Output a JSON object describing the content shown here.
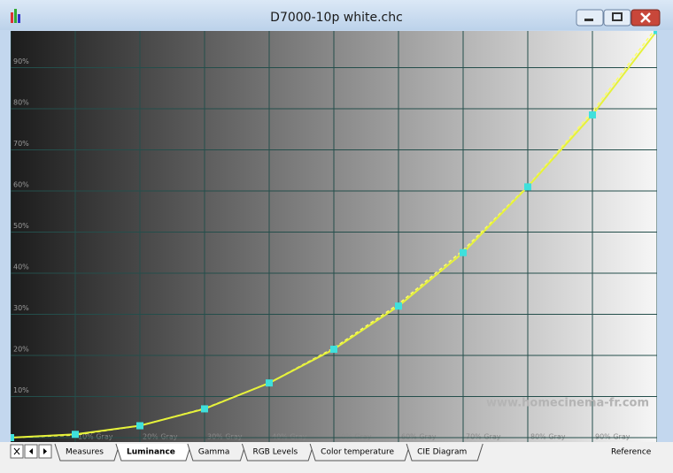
{
  "window": {
    "title": "D7000-10p white.chc"
  },
  "tabs": [
    "Measures",
    "Luminance",
    "Gamma",
    "RGB Levels",
    "Color temperature",
    "CIE Diagram"
  ],
  "watermark": "www.homecinema-fr.com",
  "chart_data": {
    "type": "line",
    "x": [
      0,
      10,
      20,
      30,
      40,
      50,
      60,
      70,
      80,
      90,
      100
    ],
    "series": [
      {
        "color": "#e6f23a",
        "marker_color": "#3fe0dc",
        "values": [
          0,
          0.8,
          2.9,
          7.0,
          13.3,
          21.5,
          32.0,
          45.0,
          61.0,
          78.5,
          99
        ]
      },
      {
        "name": "Reference",
        "color": "#ffff66",
        "dashed": true,
        "values": [
          0,
          0.63,
          2.9,
          7.1,
          13.3,
          21.8,
          32.5,
          45.6,
          61.2,
          79.3,
          100
        ]
      }
    ],
    "xlim": [
      0,
      100
    ],
    "xticks": [
      0,
      {
        "value": 10,
        "label": "10% Gray"
      },
      {
        "value": 20,
        "label": "20% Gray"
      },
      {
        "value": 30,
        "label": "30% Gray"
      },
      {
        "value": 40,
        "label": "40% Gray"
      },
      {
        "value": 50,
        "label": "50% Gray"
      },
      {
        "value": 60,
        "label": "60% Gray"
      },
      {
        "value": 70,
        "label": "70% Gray"
      },
      {
        "value": 80,
        "label": "80% Gray"
      },
      {
        "value": 90,
        "label": "90% Gray"
      },
      100
    ],
    "ylim": [
      0,
      100
    ],
    "yticks": [
      0,
      {
        "value": 10,
        "label": "10%"
      },
      {
        "value": 20,
        "label": "20%"
      },
      {
        "value": 30,
        "label": "30%"
      },
      {
        "value": 40,
        "label": "40%"
      },
      {
        "value": 50,
        "label": "50%"
      },
      {
        "value": 60,
        "label": "60%"
      },
      {
        "value": 70,
        "label": "70%"
      },
      {
        "value": 80,
        "label": "80%"
      },
      {
        "value": 90,
        "label": "90%"
      },
      100
    ],
    "grid": true
  }
}
